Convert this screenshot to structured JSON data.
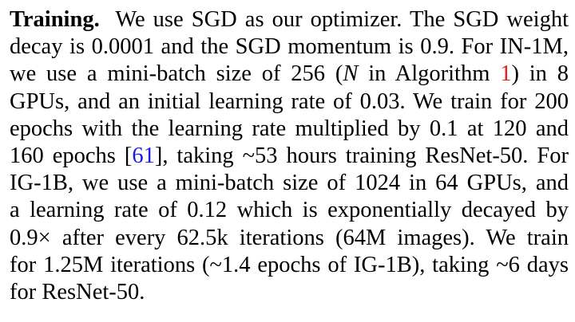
{
  "paragraph": {
    "heading": "Training.",
    "l1_text": "We use SGD as our optimizer. The SGD weight",
    "l2_text": "decay is 0.0001 and the SGD momentum is 0.9. For IN-1M,",
    "l3_a": "we use a mini-batch size of 256 (",
    "l3_var": "N",
    "l3_b": " in Algorithm ",
    "l3_ref": "1",
    "l3_c": ") in 8",
    "l4_text": "GPUs, and an initial learning rate of 0.03. We train for 200",
    "l5_text": "epochs with the learning rate multiplied by 0.1 at 120 and",
    "l6_a": "160 epochs [",
    "l6_ref": "61",
    "l6_b": "], taking ~53 hours training ResNet-50. For",
    "l7_text": "IG-1B, we use a mini-batch size of 1024 in 64 GPUs, and",
    "l8_text": "a learning rate of 0.12 which is exponentially decayed by",
    "l9_text": "0.9× after every 62.5k iterations (64M images). We train",
    "l10_text": "for 1.25M iterations (~1.4 epochs of IG-1B), taking ~6 days",
    "l11_text": "for ResNet-50."
  }
}
